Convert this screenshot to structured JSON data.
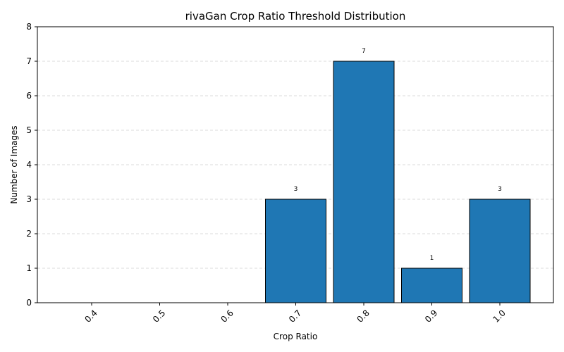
{
  "chart_data": {
    "type": "bar",
    "title": "rivaGan Crop Ratio Threshold Distribution",
    "xlabel": "Crop Ratio",
    "ylabel": "Number of Images",
    "categories": [
      "0.4",
      "0.5",
      "0.6",
      "0.7",
      "0.8",
      "0.9",
      "1.0"
    ],
    "values": [
      0,
      0,
      0,
      3,
      7,
      1,
      3
    ],
    "data_labels": [
      "",
      "",
      "",
      "3",
      "7",
      "1",
      "3"
    ],
    "ylim": [
      0,
      8
    ],
    "yticks": [
      "0",
      "1",
      "2",
      "3",
      "4",
      "5",
      "6",
      "7",
      "8"
    ],
    "grid": "y-dashed",
    "bar_color": "#1f77b4",
    "edge_color": "#000000"
  }
}
